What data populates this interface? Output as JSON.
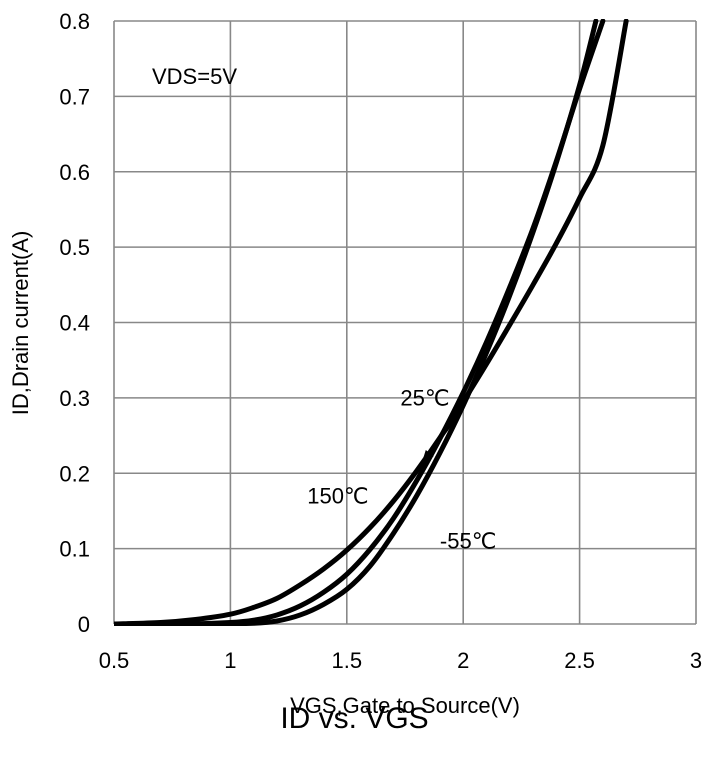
{
  "chart_data": {
    "type": "line",
    "title": "ID vs. VGS",
    "xlabel": "VGS,Gate to Source(V)",
    "ylabel": "ID,Drain current(A)",
    "xlim": [
      0.5,
      3
    ],
    "ylim": [
      0,
      0.8
    ],
    "x_ticks": [
      "0.5",
      "1",
      "1.5",
      "2",
      "2.5",
      "3"
    ],
    "y_ticks": [
      "0",
      "0.1",
      "0.2",
      "0.3",
      "0.4",
      "0.5",
      "0.6",
      "0.7",
      "0.8"
    ],
    "x_tick_values": [
      0.5,
      1,
      1.5,
      2,
      2.5,
      3
    ],
    "y_tick_values": [
      0,
      0.1,
      0.2,
      0.3,
      0.4,
      0.5,
      0.6,
      0.7,
      0.8
    ],
    "grid": true,
    "line_color": "#000000",
    "condition_label": "VDS=5V",
    "series": [
      {
        "name": "150℃",
        "label_x": 1.33,
        "label_y": 0.16,
        "x": [
          0.5,
          0.7,
          0.85,
          1.0,
          1.1,
          1.2,
          1.3,
          1.4,
          1.5,
          1.6,
          1.7,
          1.8,
          1.9,
          2.0,
          2.1,
          2.2,
          2.3,
          2.4,
          2.5,
          2.6,
          2.7
        ],
        "y": [
          0,
          0.002,
          0.006,
          0.013,
          0.022,
          0.034,
          0.052,
          0.073,
          0.098,
          0.128,
          0.163,
          0.203,
          0.247,
          0.295,
          0.345,
          0.397,
          0.45,
          0.505,
          0.565,
          0.635,
          0.8
        ]
      },
      {
        "name": "25℃",
        "label_x": 1.73,
        "label_y": 0.29,
        "arrow_to": [
          1.82,
          0.212
        ],
        "x": [
          0.5,
          0.8,
          1.0,
          1.1,
          1.2,
          1.3,
          1.4,
          1.5,
          1.6,
          1.7,
          1.8,
          1.9,
          2.0,
          2.1,
          2.2,
          2.3,
          2.4,
          2.5,
          2.6
        ],
        "y": [
          0,
          0,
          0.002,
          0.005,
          0.012,
          0.024,
          0.042,
          0.066,
          0.099,
          0.14,
          0.19,
          0.246,
          0.307,
          0.374,
          0.447,
          0.525,
          0.614,
          0.71,
          0.8
        ]
      },
      {
        "name": "-55℃",
        "label_x": 1.9,
        "label_y": 0.1,
        "x": [
          0.5,
          0.9,
          1.1,
          1.2,
          1.3,
          1.4,
          1.5,
          1.6,
          1.7,
          1.8,
          1.9,
          2.0,
          2.1,
          2.2,
          2.3,
          2.4,
          2.5,
          2.57
        ],
        "y": [
          0,
          0,
          0.001,
          0.004,
          0.012,
          0.026,
          0.046,
          0.077,
          0.12,
          0.17,
          0.227,
          0.29,
          0.36,
          0.436,
          0.52,
          0.612,
          0.715,
          0.8
        ]
      }
    ]
  }
}
